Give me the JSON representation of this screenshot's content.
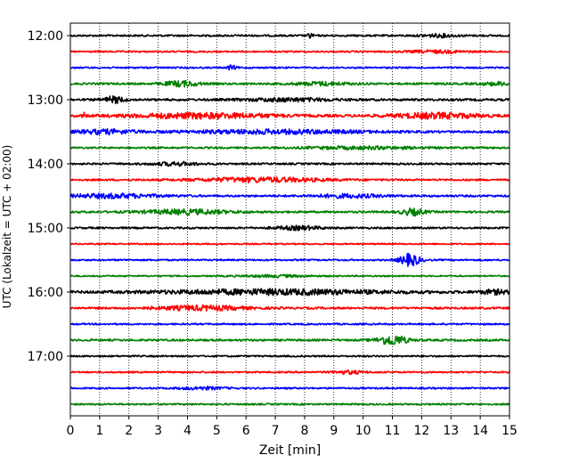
{
  "chart_data": {
    "type": "line",
    "title": "",
    "xlabel": "Zeit  [min]",
    "ylabel": "UTC (Lokalzeit = UTC + 02:00)",
    "xlim": [
      0,
      15
    ],
    "x_ticks": [
      "0",
      "1",
      "2",
      "3",
      "4",
      "5",
      "6",
      "7",
      "8",
      "9",
      "10",
      "11",
      "12",
      "13",
      "14",
      "15"
    ],
    "y_ticks": [
      "12:00",
      "13:00",
      "14:00",
      "15:00",
      "16:00",
      "17:00"
    ],
    "grid": "vertical dotted",
    "series_colors": [
      "#000000",
      "#ff0000",
      "#0000ff",
      "#008000"
    ],
    "traces": [
      {
        "start": "12:00",
        "color": "#000000",
        "base_amp": 0.9,
        "bursts": [
          {
            "t": 8.2,
            "a": 3.2,
            "w": 0.08
          },
          {
            "t": 12.6,
            "a": 1.4,
            "w": 0.6
          }
        ]
      },
      {
        "start": "12:15",
        "color": "#ff0000",
        "base_amp": 0.8,
        "bursts": [
          {
            "t": 12.5,
            "a": 1.2,
            "w": 1.0
          }
        ]
      },
      {
        "start": "12:30",
        "color": "#0000ff",
        "base_amp": 0.8,
        "bursts": [
          {
            "t": 5.5,
            "a": 2.2,
            "w": 0.15
          }
        ]
      },
      {
        "start": "12:45",
        "color": "#008000",
        "base_amp": 1.0,
        "bursts": [
          {
            "t": 3.8,
            "a": 2.6,
            "w": 0.6
          },
          {
            "t": 8.6,
            "a": 1.6,
            "w": 0.9
          },
          {
            "t": 14.6,
            "a": 1.4,
            "w": 0.6
          }
        ]
      },
      {
        "start": "13:00",
        "color": "#000000",
        "base_amp": 1.1,
        "bursts": [
          {
            "t": 1.5,
            "a": 3.0,
            "w": 0.35
          },
          {
            "t": 7.5,
            "a": 1.4,
            "w": 1.5
          }
        ]
      },
      {
        "start": "13:15",
        "color": "#ff0000",
        "base_amp": 1.2,
        "bursts": [
          {
            "t": 0.45,
            "a": 4.0,
            "w": 0.04
          },
          {
            "t": 4.5,
            "a": 2.4,
            "w": 2.5
          },
          {
            "t": 12.5,
            "a": 2.5,
            "w": 1.5
          }
        ]
      },
      {
        "start": "13:30",
        "color": "#0000ff",
        "base_amp": 1.1,
        "bursts": [
          {
            "t": 1.2,
            "a": 2.0,
            "w": 1.0
          },
          {
            "t": 7.0,
            "a": 1.8,
            "w": 3.0
          }
        ]
      },
      {
        "start": "13:45",
        "color": "#008000",
        "base_amp": 0.9,
        "bursts": [
          {
            "t": 10.0,
            "a": 1.2,
            "w": 2.0
          }
        ]
      },
      {
        "start": "14:00",
        "color": "#000000",
        "base_amp": 0.9,
        "bursts": [
          {
            "t": 3.6,
            "a": 1.6,
            "w": 0.8
          }
        ]
      },
      {
        "start": "14:15",
        "color": "#ff0000",
        "base_amp": 0.9,
        "bursts": [
          {
            "t": 6.5,
            "a": 2.2,
            "w": 2.2
          }
        ]
      },
      {
        "start": "14:30",
        "color": "#0000ff",
        "base_amp": 1.0,
        "bursts": [
          {
            "t": 1.5,
            "a": 2.0,
            "w": 1.5
          },
          {
            "t": 9.5,
            "a": 1.6,
            "w": 1.2
          }
        ]
      },
      {
        "start": "14:45",
        "color": "#008000",
        "base_amp": 1.0,
        "bursts": [
          {
            "t": 4.0,
            "a": 2.2,
            "w": 1.5
          },
          {
            "t": 11.7,
            "a": 3.2,
            "w": 0.4
          }
        ]
      },
      {
        "start": "15:00",
        "color": "#000000",
        "base_amp": 0.9,
        "bursts": [
          {
            "t": 7.8,
            "a": 1.8,
            "w": 0.8
          }
        ]
      },
      {
        "start": "15:15",
        "color": "#ff0000",
        "base_amp": 0.7,
        "bursts": []
      },
      {
        "start": "15:30",
        "color": "#0000ff",
        "base_amp": 0.8,
        "bursts": [
          {
            "t": 11.6,
            "a": 6.0,
            "w": 0.35
          }
        ]
      },
      {
        "start": "15:45",
        "color": "#008000",
        "base_amp": 0.7,
        "bursts": [
          {
            "t": 7.0,
            "a": 1.0,
            "w": 1.2
          }
        ]
      },
      {
        "start": "16:00",
        "color": "#000000",
        "base_amp": 1.2,
        "bursts": [
          {
            "t": 7.0,
            "a": 2.4,
            "w": 3.8
          },
          {
            "t": 14.5,
            "a": 2.0,
            "w": 0.5
          }
        ]
      },
      {
        "start": "16:15",
        "color": "#ff0000",
        "base_amp": 1.0,
        "bursts": [
          {
            "t": 4.5,
            "a": 2.2,
            "w": 1.5
          }
        ]
      },
      {
        "start": "16:30",
        "color": "#0000ff",
        "base_amp": 0.8,
        "bursts": []
      },
      {
        "start": "16:45",
        "color": "#008000",
        "base_amp": 1.0,
        "bursts": [
          {
            "t": 11.0,
            "a": 5.0,
            "w": 0.5
          }
        ]
      },
      {
        "start": "17:00",
        "color": "#000000",
        "base_amp": 0.8,
        "bursts": []
      },
      {
        "start": "17:15",
        "color": "#ff0000",
        "base_amp": 0.8,
        "bursts": [
          {
            "t": 9.5,
            "a": 1.6,
            "w": 0.5
          }
        ]
      },
      {
        "start": "17:30",
        "color": "#0000ff",
        "base_amp": 0.8,
        "bursts": [
          {
            "t": 4.5,
            "a": 1.2,
            "w": 0.8
          }
        ]
      },
      {
        "start": "17:45",
        "color": "#008000",
        "base_amp": 0.8,
        "bursts": []
      }
    ]
  }
}
